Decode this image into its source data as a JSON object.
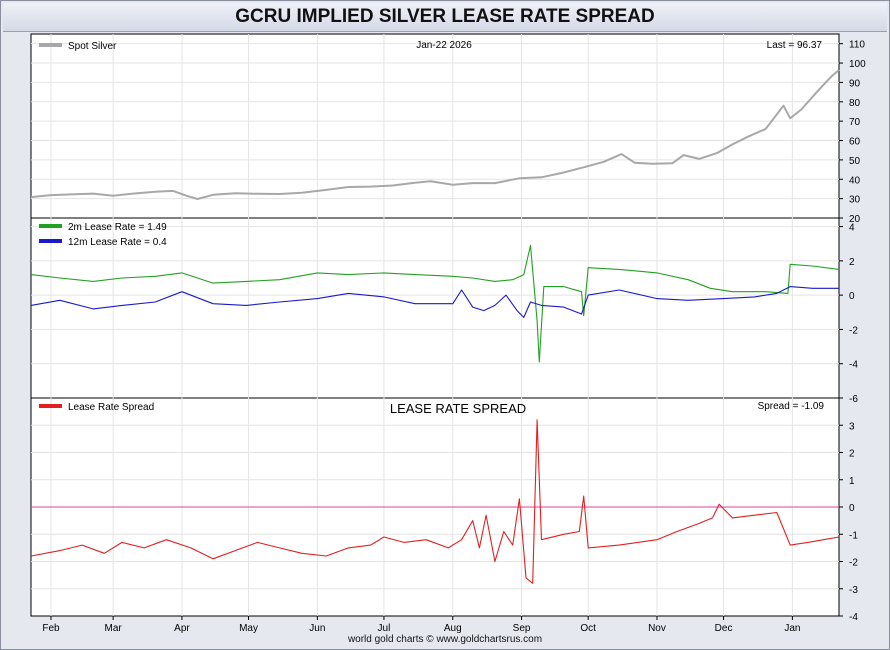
{
  "title": "GCRU IMPLIED SILVER LEASE RATE SPREAD",
  "credit": "world gold charts © www.goldchartsrus.com",
  "chart_data": [
    {
      "type": "line",
      "panel": "spot-silver",
      "date_label": "Jan-22  2026",
      "last_label": "Last = 96.37",
      "ylim": [
        20,
        115
      ],
      "yticks": [
        20,
        30,
        40,
        50,
        60,
        70,
        80,
        90,
        100,
        110
      ],
      "grid": true,
      "legend": "top-left",
      "series": [
        {
          "name": "Spot Silver",
          "color": "#a8a8a8",
          "points": [
            [
              "2025-01-23",
              30.8
            ],
            [
              "2025-02-01",
              31.8
            ],
            [
              "2025-02-10",
              32.2
            ],
            [
              "2025-02-20",
              32.6
            ],
            [
              "2025-03-01",
              31.5
            ],
            [
              "2025-03-10",
              32.6
            ],
            [
              "2025-03-20",
              33.6
            ],
            [
              "2025-03-28",
              34.0
            ],
            [
              "2025-04-03",
              31.5
            ],
            [
              "2025-04-08",
              29.8
            ],
            [
              "2025-04-15",
              32.0
            ],
            [
              "2025-04-25",
              32.8
            ],
            [
              "2025-05-05",
              32.5
            ],
            [
              "2025-05-15",
              32.4
            ],
            [
              "2025-05-25",
              33.0
            ],
            [
              "2025-06-05",
              34.5
            ],
            [
              "2025-06-15",
              36.0
            ],
            [
              "2025-06-25",
              36.2
            ],
            [
              "2025-07-05",
              36.8
            ],
            [
              "2025-07-15",
              38.2
            ],
            [
              "2025-07-22",
              39.0
            ],
            [
              "2025-08-01",
              37.2
            ],
            [
              "2025-08-10",
              38.0
            ],
            [
              "2025-08-20",
              38.0
            ],
            [
              "2025-08-31",
              40.5
            ],
            [
              "2025-09-10",
              41.0
            ],
            [
              "2025-09-20",
              43.5
            ],
            [
              "2025-09-30",
              46.5
            ],
            [
              "2025-10-08",
              49.0
            ],
            [
              "2025-10-16",
              53.0
            ],
            [
              "2025-10-22",
              48.5
            ],
            [
              "2025-10-30",
              48.0
            ],
            [
              "2025-11-08",
              48.3
            ],
            [
              "2025-11-13",
              52.5
            ],
            [
              "2025-11-20",
              50.5
            ],
            [
              "2025-11-28",
              53.5
            ],
            [
              "2025-12-05",
              58.0
            ],
            [
              "2025-12-12",
              62.0
            ],
            [
              "2025-12-20",
              66.0
            ],
            [
              "2025-12-28",
              78.0
            ],
            [
              "2025-12-31",
              71.5
            ],
            [
              "2026-01-05",
              76.0
            ],
            [
              "2026-01-12",
              85.0
            ],
            [
              "2026-01-16",
              90.0
            ],
            [
              "2026-01-19",
              93.5
            ],
            [
              "2026-01-22",
              96.4
            ]
          ]
        }
      ]
    },
    {
      "type": "line",
      "panel": "lease-rates",
      "ylim": [
        -6,
        4.5
      ],
      "yticks": [
        -6,
        -4,
        -2,
        0,
        2,
        4
      ],
      "grid": true,
      "legend": "top-left",
      "series": [
        {
          "name": "2m Lease Rate",
          "legend_label": "2m Lease Rate =  1.49",
          "color": "#22a022",
          "points": [
            [
              "2025-01-23",
              1.2
            ],
            [
              "2025-02-05",
              1.0
            ],
            [
              "2025-02-20",
              0.8
            ],
            [
              "2025-03-05",
              1.0
            ],
            [
              "2025-03-20",
              1.1
            ],
            [
              "2025-04-01",
              1.3
            ],
            [
              "2025-04-15",
              0.7
            ],
            [
              "2025-04-30",
              0.8
            ],
            [
              "2025-05-15",
              0.9
            ],
            [
              "2025-06-01",
              1.3
            ],
            [
              "2025-06-15",
              1.2
            ],
            [
              "2025-07-01",
              1.3
            ],
            [
              "2025-07-15",
              1.2
            ],
            [
              "2025-08-01",
              1.1
            ],
            [
              "2025-08-10",
              1.0
            ],
            [
              "2025-08-20",
              0.8
            ],
            [
              "2025-08-28",
              0.9
            ],
            [
              "2025-09-02",
              1.2
            ],
            [
              "2025-09-05",
              2.9
            ],
            [
              "2025-09-08",
              -1.5
            ],
            [
              "2025-09-09",
              -3.9
            ],
            [
              "2025-09-11",
              0.5
            ],
            [
              "2025-09-20",
              0.5
            ],
            [
              "2025-09-28",
              0.2
            ],
            [
              "2025-09-29",
              -1.2
            ],
            [
              "2025-10-01",
              1.6
            ],
            [
              "2025-10-15",
              1.5
            ],
            [
              "2025-11-01",
              1.3
            ],
            [
              "2025-11-15",
              0.9
            ],
            [
              "2025-11-25",
              0.4
            ],
            [
              "2025-12-05",
              0.2
            ],
            [
              "2025-12-20",
              0.2
            ],
            [
              "2025-12-30",
              0.1
            ],
            [
              "2025-12-31",
              1.8
            ],
            [
              "2026-01-10",
              1.7
            ],
            [
              "2026-01-22",
              1.5
            ]
          ]
        },
        {
          "name": "12m Lease Rate",
          "legend_label": "12m Lease Rate =  0.4",
          "color": "#1a1acc",
          "points": [
            [
              "2025-01-23",
              -0.6
            ],
            [
              "2025-02-05",
              -0.3
            ],
            [
              "2025-02-20",
              -0.8
            ],
            [
              "2025-03-05",
              -0.6
            ],
            [
              "2025-03-20",
              -0.4
            ],
            [
              "2025-04-01",
              0.2
            ],
            [
              "2025-04-15",
              -0.5
            ],
            [
              "2025-04-30",
              -0.6
            ],
            [
              "2025-05-15",
              -0.4
            ],
            [
              "2025-06-01",
              -0.2
            ],
            [
              "2025-06-15",
              0.1
            ],
            [
              "2025-07-01",
              -0.1
            ],
            [
              "2025-07-15",
              -0.5
            ],
            [
              "2025-08-01",
              -0.5
            ],
            [
              "2025-08-05",
              0.3
            ],
            [
              "2025-08-10",
              -0.7
            ],
            [
              "2025-08-15",
              -0.9
            ],
            [
              "2025-08-20",
              -0.6
            ],
            [
              "2025-08-25",
              0.0
            ],
            [
              "2025-08-30",
              -0.9
            ],
            [
              "2025-09-02",
              -1.3
            ],
            [
              "2025-09-05",
              -0.4
            ],
            [
              "2025-09-10",
              -0.6
            ],
            [
              "2025-09-20",
              -0.7
            ],
            [
              "2025-09-28",
              -1.1
            ],
            [
              "2025-10-01",
              0.0
            ],
            [
              "2025-10-15",
              0.3
            ],
            [
              "2025-11-01",
              -0.2
            ],
            [
              "2025-11-15",
              -0.3
            ],
            [
              "2025-12-01",
              -0.2
            ],
            [
              "2025-12-15",
              -0.1
            ],
            [
              "2025-12-25",
              0.1
            ],
            [
              "2025-12-31",
              0.5
            ],
            [
              "2026-01-10",
              0.4
            ],
            [
              "2026-01-22",
              0.4
            ]
          ]
        }
      ]
    },
    {
      "type": "line",
      "panel": "spread",
      "title": "LEASE RATE SPREAD",
      "last_label": "Spread = -1.09",
      "ylim": [
        -4,
        4
      ],
      "yticks": [
        -4,
        -3,
        -2,
        -1,
        0,
        1,
        2,
        3
      ],
      "grid": true,
      "legend": "top-left",
      "zero_line_color": "#e040a0",
      "series": [
        {
          "name": "Lease Rate Spread",
          "color": "#e02020",
          "points": [
            [
              "2025-01-23",
              -1.8
            ],
            [
              "2025-02-05",
              -1.6
            ],
            [
              "2025-02-15",
              -1.4
            ],
            [
              "2025-02-25",
              -1.7
            ],
            [
              "2025-03-05",
              -1.3
            ],
            [
              "2025-03-15",
              -1.5
            ],
            [
              "2025-03-25",
              -1.2
            ],
            [
              "2025-04-05",
              -1.5
            ],
            [
              "2025-04-15",
              -1.9
            ],
            [
              "2025-04-25",
              -1.6
            ],
            [
              "2025-05-05",
              -1.3
            ],
            [
              "2025-05-15",
              -1.5
            ],
            [
              "2025-05-25",
              -1.7
            ],
            [
              "2025-06-05",
              -1.8
            ],
            [
              "2025-06-15",
              -1.5
            ],
            [
              "2025-06-25",
              -1.4
            ],
            [
              "2025-07-01",
              -1.1
            ],
            [
              "2025-07-10",
              -1.3
            ],
            [
              "2025-07-20",
              -1.2
            ],
            [
              "2025-07-30",
              -1.5
            ],
            [
              "2025-08-05",
              -1.2
            ],
            [
              "2025-08-10",
              -0.5
            ],
            [
              "2025-08-13",
              -1.5
            ],
            [
              "2025-08-16",
              -0.3
            ],
            [
              "2025-08-20",
              -2.0
            ],
            [
              "2025-08-24",
              -0.9
            ],
            [
              "2025-08-28",
              -1.4
            ],
            [
              "2025-08-31",
              0.3
            ],
            [
              "2025-09-03",
              -2.6
            ],
            [
              "2025-09-06",
              -2.8
            ],
            [
              "2025-09-08",
              3.2
            ],
            [
              "2025-09-10",
              -1.2
            ],
            [
              "2025-09-20",
              -1.0
            ],
            [
              "2025-09-27",
              -0.9
            ],
            [
              "2025-09-29",
              0.4
            ],
            [
              "2025-10-01",
              -1.5
            ],
            [
              "2025-10-15",
              -1.4
            ],
            [
              "2025-11-01",
              -1.2
            ],
            [
              "2025-11-10",
              -0.9
            ],
            [
              "2025-11-20",
              -0.6
            ],
            [
              "2025-11-26",
              -0.4
            ],
            [
              "2025-11-29",
              0.1
            ],
            [
              "2025-12-05",
              -0.4
            ],
            [
              "2025-12-15",
              -0.3
            ],
            [
              "2025-12-25",
              -0.2
            ],
            [
              "2025-12-31",
              -1.4
            ],
            [
              "2026-01-08",
              -1.3
            ],
            [
              "2026-01-15",
              -1.2
            ],
            [
              "2026-01-22",
              -1.1
            ]
          ]
        }
      ]
    }
  ],
  "x_axis": {
    "tick_labels": [
      "Feb",
      "Mar",
      "Apr",
      "May",
      "Jun",
      "Jul",
      "Aug",
      "Sep",
      "Oct",
      "Nov",
      "Dec",
      "Jan"
    ],
    "tick_dates": [
      "2025-02-01",
      "2025-03-01",
      "2025-04-01",
      "2025-05-01",
      "2025-06-01",
      "2025-07-01",
      "2025-08-01",
      "2025-09-01",
      "2025-10-01",
      "2025-11-01",
      "2025-12-01",
      "2026-01-01"
    ],
    "range": [
      "2025-01-23",
      "2026-01-22"
    ]
  }
}
